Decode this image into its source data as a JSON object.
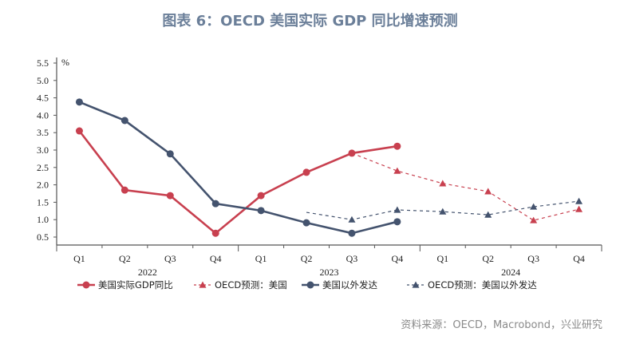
{
  "title": "图表 6：OECD 美国实际 GDP 同比增速预测",
  "source": "资料来源：OECD，Macrobond，兴业研究",
  "chart_data": {
    "type": "line",
    "unit_label": "%",
    "categories": [
      "Q1",
      "Q2",
      "Q3",
      "Q4",
      "Q1",
      "Q2",
      "Q3",
      "Q4",
      "Q1",
      "Q2",
      "Q3",
      "Q4"
    ],
    "year_labels": [
      "2022",
      "2023",
      "2024"
    ],
    "ylim": [
      0.5,
      5.5
    ],
    "yticks": [
      "0.5",
      "1.0",
      "1.5",
      "2.0",
      "2.5",
      "3.0",
      "3.5",
      "4.0",
      "4.5",
      "5.0",
      "5.5"
    ],
    "grid": false,
    "legend_position": "bottom",
    "series": [
      {
        "name": "美国实际GDP同比",
        "color": "#c8404f",
        "style": "solid",
        "marker": "circle",
        "values": [
          3.55,
          1.85,
          1.69,
          0.61,
          1.69,
          2.36,
          2.91,
          3.11,
          null,
          null,
          null,
          null
        ]
      },
      {
        "name": "OECD预测：美国",
        "color": "#c8404f",
        "style": "dashed",
        "marker": "triangle",
        "values": [
          null,
          null,
          null,
          null,
          null,
          null,
          2.91,
          2.4,
          2.04,
          1.81,
          0.98,
          1.3
        ]
      },
      {
        "name": "美国以外发达",
        "color": "#44536e",
        "style": "solid",
        "marker": "circle",
        "values": [
          4.38,
          3.85,
          2.89,
          1.46,
          1.26,
          0.91,
          0.61,
          0.94,
          null,
          null,
          null,
          null
        ]
      },
      {
        "name": "OECD预测：美国以外发达",
        "color": "#44536e",
        "style": "dashed",
        "marker": "triangle",
        "values": [
          null,
          null,
          null,
          null,
          null,
          1.21,
          1.0,
          1.28,
          1.23,
          1.14,
          1.37,
          1.53
        ]
      }
    ]
  }
}
